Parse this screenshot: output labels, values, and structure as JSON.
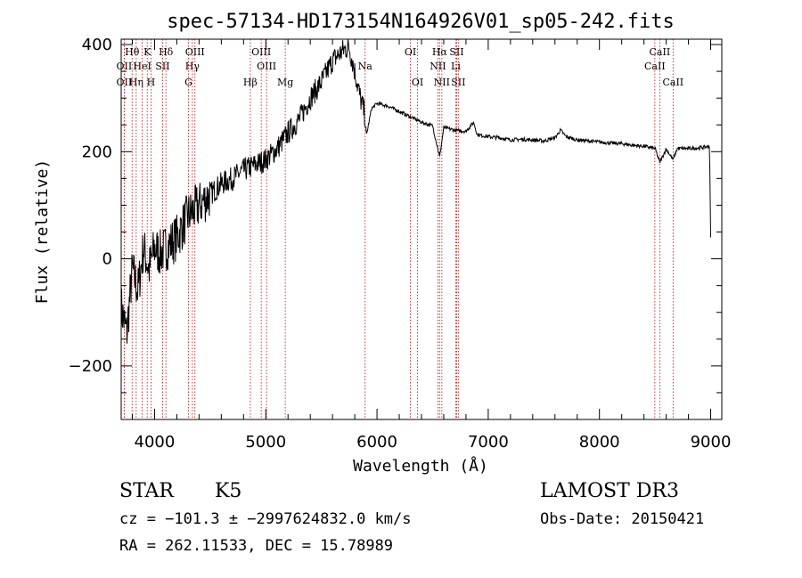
{
  "chart_data": {
    "type": "line",
    "title": "spec-57134-HD173154N164926V01_sp05-242.fits",
    "xlabel": "Wavelength (Å)",
    "ylabel": "Flux (relative)",
    "xlim": [
      3700,
      9100
    ],
    "ylim": [
      -300,
      410
    ],
    "xticks": [
      4000,
      5000,
      6000,
      7000,
      8000,
      9000
    ],
    "xtick_labels": [
      "4000",
      "5000",
      "6000",
      "7000",
      "8000",
      "9000"
    ],
    "yticks": [
      -200,
      0,
      200,
      400
    ],
    "ytick_labels": [
      "−200",
      "0",
      "200",
      "400"
    ],
    "series": [
      {
        "name": "spectrum",
        "x": [
          3700,
          3750,
          3800,
          3850,
          3900,
          3950,
          4000,
          4050,
          4100,
          4200,
          4300,
          4400,
          4500,
          4600,
          4700,
          4800,
          4900,
          5000,
          5100,
          5200,
          5300,
          5400,
          5500,
          5600,
          5700,
          5750,
          5800,
          5850,
          5890,
          5905,
          5950,
          6000,
          6100,
          6200,
          6300,
          6400,
          6500,
          6563,
          6600,
          6700,
          6800,
          6870,
          6900,
          7000,
          7100,
          7200,
          7300,
          7400,
          7500,
          7600,
          7650,
          7700,
          7800,
          7900,
          8000,
          8100,
          8200,
          8300,
          8400,
          8500,
          8542,
          8600,
          8662,
          8700,
          8800,
          8900,
          8990,
          9000
        ],
        "values": [
          -90,
          -140,
          -20,
          -60,
          20,
          -20,
          20,
          10,
          20,
          40,
          80,
          100,
          120,
          140,
          150,
          165,
          175,
          185,
          205,
          235,
          260,
          300,
          330,
          370,
          390,
          395,
          350,
          300,
          270,
          230,
          280,
          290,
          285,
          275,
          265,
          255,
          248,
          190,
          245,
          240,
          238,
          255,
          232,
          228,
          226,
          222,
          223,
          222,
          220,
          226,
          240,
          228,
          222,
          220,
          218,
          216,
          215,
          212,
          210,
          206,
          180,
          205,
          185,
          206,
          206,
          207,
          210,
          40
        ]
      }
    ],
    "lines": [
      {
        "label": "Hθ",
        "x": 3798,
        "row": 1
      },
      {
        "label": "K",
        "x": 3934,
        "row": 1
      },
      {
        "label": "Hδ",
        "x": 4102,
        "row": 1
      },
      {
        "label": "OIII",
        "x": 4363,
        "row": 1
      },
      {
        "label": "OIII",
        "x": 4959,
        "row": 1
      },
      {
        "label": "OI",
        "x": 6300,
        "row": 1
      },
      {
        "label": "Hα",
        "x": 6563,
        "row": 1
      },
      {
        "label": "SII",
        "x": 6716,
        "row": 1
      },
      {
        "label": "CaII",
        "x": 8542,
        "row": 1
      },
      {
        "label": "OII",
        "x": 3727,
        "row": 2
      },
      {
        "label": "HeI",
        "x": 3889,
        "row": 2
      },
      {
        "label": "SII",
        "x": 4072,
        "row": 2
      },
      {
        "label": "Hγ",
        "x": 4340,
        "row": 2
      },
      {
        "label": "OIII",
        "x": 5007,
        "row": 2
      },
      {
        "label": "Na",
        "x": 5893,
        "row": 2
      },
      {
        "label": "NII",
        "x": 6548,
        "row": 2
      },
      {
        "label": "Li",
        "x": 6708,
        "row": 2
      },
      {
        "label": "CaII",
        "x": 8498,
        "row": 2
      },
      {
        "label": "OII",
        "x": 3727,
        "row": 3
      },
      {
        "label": "Hη",
        "x": 3835,
        "row": 3
      },
      {
        "label": "H",
        "x": 3968,
        "row": 3
      },
      {
        "label": "G",
        "x": 4305,
        "row": 3
      },
      {
        "label": "Hβ",
        "x": 4861,
        "row": 3
      },
      {
        "label": "Mg",
        "x": 5175,
        "row": 3
      },
      {
        "label": "OI",
        "x": 6364,
        "row": 3
      },
      {
        "label": "NII",
        "x": 6583,
        "row": 3
      },
      {
        "label": "SII",
        "x": 6731,
        "row": 3
      },
      {
        "label": "CaII",
        "x": 8662,
        "row": 3
      }
    ]
  },
  "info": {
    "object_class": "STAR",
    "subclass": "K5",
    "survey": "LAMOST DR3",
    "cz": "cz = −101.3 ± −2997624832.0 km/s",
    "obs_date": "Obs-Date: 20150421",
    "coords": "RA = 262.11533, DEC =  15.78989"
  }
}
